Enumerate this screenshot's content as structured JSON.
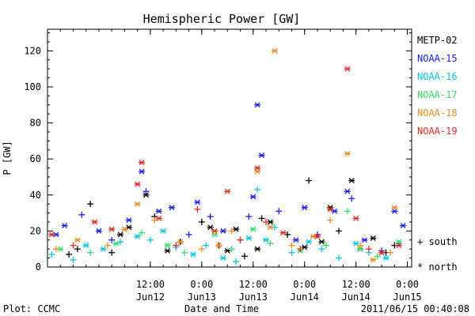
{
  "chart_data": {
    "type": "scatter",
    "title": "Hemispheric Power [GW]",
    "ylabel": "P [GW]",
    "xlabel": "Date and Time",
    "x_range": [
      "2011-06-11T12:00",
      "2011-06-15T01:00"
    ],
    "ylim": [
      0,
      132
    ],
    "y_ticks": [
      0,
      20,
      40,
      60,
      80,
      100,
      120
    ],
    "x_ticks": [
      {
        "x": "2011-06-12T12:00",
        "time": "12:00",
        "date": "Jun12"
      },
      {
        "x": "2011-06-13T00:00",
        "time": "0:00",
        "date": "Jun13"
      },
      {
        "x": "2011-06-13T12:00",
        "time": "12:00",
        "date": "Jun13"
      },
      {
        "x": "2011-06-14T00:00",
        "time": "0:00",
        "date": "Jun14"
      },
      {
        "x": "2011-06-14T12:00",
        "time": "12:00",
        "date": "Jun14"
      },
      {
        "x": "2011-06-15T00:00",
        "time": "0:00",
        "date": "Jun15"
      }
    ],
    "grid": false,
    "legend_position": "right",
    "marker_legend": {
      "south": "+ south",
      "north": "* north"
    },
    "series": [
      {
        "name": "METP-02",
        "color": "#000000",
        "points": [
          [
            "2011-06-11T17:00",
            7,
            "south"
          ],
          [
            "2011-06-11T19:00",
            10,
            "south"
          ],
          [
            "2011-06-11T22:00",
            35,
            "south"
          ],
          [
            "2011-06-12T03:00",
            8,
            "south"
          ],
          [
            "2011-06-12T05:00",
            18,
            "north"
          ],
          [
            "2011-06-12T07:00",
            22,
            "north"
          ],
          [
            "2011-06-12T11:00",
            40,
            "north"
          ],
          [
            "2011-06-12T13:00",
            28,
            "south"
          ],
          [
            "2011-06-12T16:00",
            9,
            "north"
          ],
          [
            "2011-06-12T19:00",
            14,
            "south"
          ],
          [
            "2011-06-13T00:00",
            25,
            "south"
          ],
          [
            "2011-06-13T02:00",
            22,
            "north"
          ],
          [
            "2011-06-13T04:00",
            12,
            "south"
          ],
          [
            "2011-06-13T06:00",
            9,
            "north"
          ],
          [
            "2011-06-13T08:00",
            21,
            "north"
          ],
          [
            "2011-06-13T10:00",
            6,
            "south"
          ],
          [
            "2011-06-13T13:00",
            10,
            "north"
          ],
          [
            "2011-06-13T14:00",
            27,
            "south"
          ],
          [
            "2011-06-13T16:00",
            25,
            "north"
          ],
          [
            "2011-06-13T20:00",
            18,
            "south"
          ],
          [
            "2011-06-14T00:00",
            11,
            "north"
          ],
          [
            "2011-06-14T01:00",
            48,
            "south"
          ],
          [
            "2011-06-14T04:00",
            14,
            "north"
          ],
          [
            "2011-06-14T06:00",
            33,
            "north"
          ],
          [
            "2011-06-14T08:00",
            20,
            "south"
          ],
          [
            "2011-06-14T11:00",
            48,
            "north"
          ],
          [
            "2011-06-14T13:00",
            10,
            "north"
          ],
          [
            "2011-06-14T16:00",
            16,
            "north"
          ],
          [
            "2011-06-14T19:00",
            8,
            "south"
          ],
          [
            "2011-06-14T21:00",
            12,
            "south"
          ]
        ]
      },
      {
        "name": "NOAA-15",
        "color": "#1a1aff",
        "points": [
          [
            "2011-06-11T14:00",
            18,
            "north"
          ],
          [
            "2011-06-11T16:00",
            23,
            "north"
          ],
          [
            "2011-06-11T20:00",
            29,
            "south"
          ],
          [
            "2011-06-12T00:00",
            20,
            "north"
          ],
          [
            "2011-06-12T03:00",
            15,
            "south"
          ],
          [
            "2011-06-12T07:00",
            26,
            "north"
          ],
          [
            "2011-06-12T10:00",
            53,
            "north"
          ],
          [
            "2011-06-12T11:00",
            42,
            "south"
          ],
          [
            "2011-06-12T14:00",
            31,
            "north"
          ],
          [
            "2011-06-12T17:00",
            33,
            "north"
          ],
          [
            "2011-06-12T21:00",
            18,
            "south"
          ],
          [
            "2011-06-12T23:00",
            36,
            "north"
          ],
          [
            "2011-06-13T02:00",
            28,
            "south"
          ],
          [
            "2011-06-13T05:00",
            20,
            "north"
          ],
          [
            "2011-06-13T09:00",
            15,
            "south"
          ],
          [
            "2011-06-13T11:00",
            28,
            "south"
          ],
          [
            "2011-06-13T12:00",
            39,
            "north"
          ],
          [
            "2011-06-13T13:00",
            90,
            "north"
          ],
          [
            "2011-06-13T14:00",
            62,
            "north"
          ],
          [
            "2011-06-13T18:00",
            31,
            "south"
          ],
          [
            "2011-06-13T22:00",
            15,
            "north"
          ],
          [
            "2011-06-14T00:00",
            33,
            "north"
          ],
          [
            "2011-06-14T03:00",
            18,
            "south"
          ],
          [
            "2011-06-14T07:00",
            31,
            "north"
          ],
          [
            "2011-06-14T10:00",
            42,
            "north"
          ],
          [
            "2011-06-14T11:00",
            38,
            "south"
          ],
          [
            "2011-06-14T14:00",
            15,
            "north"
          ],
          [
            "2011-06-14T18:00",
            9,
            "south"
          ],
          [
            "2011-06-14T21:00",
            31,
            "north"
          ],
          [
            "2011-06-14T23:00",
            23,
            "north"
          ]
        ]
      },
      {
        "name": "NOAA-16",
        "color": "#00c8e6",
        "points": [
          [
            "2011-06-11T13:00",
            7,
            "south"
          ],
          [
            "2011-06-11T18:00",
            4,
            "south"
          ],
          [
            "2011-06-11T21:00",
            12,
            "north"
          ],
          [
            "2011-06-12T01:00",
            10,
            "north"
          ],
          [
            "2011-06-12T05:00",
            14,
            "south"
          ],
          [
            "2011-06-12T09:00",
            17,
            "north"
          ],
          [
            "2011-06-12T12:00",
            15,
            "south"
          ],
          [
            "2011-06-12T15:00",
            20,
            "north"
          ],
          [
            "2011-06-12T18:00",
            11,
            "south"
          ],
          [
            "2011-06-12T22:00",
            7,
            "north"
          ],
          [
            "2011-06-13T01:00",
            12,
            "south"
          ],
          [
            "2011-06-13T05:00",
            5,
            "north"
          ],
          [
            "2011-06-13T08:00",
            3,
            "south"
          ],
          [
            "2011-06-13T11:00",
            16,
            "north"
          ],
          [
            "2011-06-13T13:00",
            43,
            "south"
          ],
          [
            "2011-06-13T15:00",
            15,
            "north"
          ],
          [
            "2011-06-13T17:00",
            22,
            "south"
          ],
          [
            "2011-06-13T21:00",
            8,
            "south"
          ],
          [
            "2011-06-14T01:00",
            14,
            "north"
          ],
          [
            "2011-06-14T04:00",
            10,
            "south"
          ],
          [
            "2011-06-14T08:00",
            5,
            "south"
          ],
          [
            "2011-06-14T12:00",
            13,
            "north"
          ],
          [
            "2011-06-14T15:00",
            8,
            "south"
          ],
          [
            "2011-06-14T19:00",
            5,
            "north"
          ],
          [
            "2011-06-14T22:00",
            13,
            "south"
          ]
        ]
      },
      {
        "name": "NOAA-17",
        "color": "#33dd66",
        "points": [
          [
            "2011-06-11T15:00",
            10,
            "north"
          ],
          [
            "2011-06-11T22:00",
            8,
            "south"
          ],
          [
            "2011-06-12T04:00",
            13,
            "north"
          ],
          [
            "2011-06-12T10:00",
            19,
            "south"
          ],
          [
            "2011-06-12T16:00",
            12,
            "north"
          ],
          [
            "2011-06-12T20:00",
            8,
            "south"
          ],
          [
            "2011-06-13T03:00",
            18,
            "north"
          ],
          [
            "2011-06-13T07:00",
            10,
            "south"
          ],
          [
            "2011-06-13T12:00",
            21,
            "north"
          ],
          [
            "2011-06-13T16:00",
            13,
            "south"
          ],
          [
            "2011-06-13T23:00",
            9,
            "north"
          ],
          [
            "2011-06-14T05:00",
            12,
            "south"
          ],
          [
            "2011-06-14T10:00",
            31,
            "south"
          ],
          [
            "2011-06-14T13:00",
            10,
            "north"
          ],
          [
            "2011-06-14T17:00",
            6,
            "south"
          ],
          [
            "2011-06-14T22:00",
            14,
            "north"
          ]
        ]
      },
      {
        "name": "NOAA-18",
        "color": "#f08c1e",
        "points": [
          [
            "2011-06-11T14:00",
            10,
            "south"
          ],
          [
            "2011-06-11T19:00",
            15,
            "north"
          ],
          [
            "2011-06-12T02:00",
            12,
            "south"
          ],
          [
            "2011-06-12T06:00",
            21,
            "north"
          ],
          [
            "2011-06-12T09:00",
            35,
            "north"
          ],
          [
            "2011-06-12T13:00",
            26,
            "south"
          ],
          [
            "2011-06-12T19:00",
            14,
            "north"
          ],
          [
            "2011-06-13T00:00",
            10,
            "south"
          ],
          [
            "2011-06-13T04:00",
            12,
            "north"
          ],
          [
            "2011-06-13T07:00",
            20,
            "south"
          ],
          [
            "2011-06-13T13:00",
            53,
            "north"
          ],
          [
            "2011-06-13T16:00",
            22,
            "north"
          ],
          [
            "2011-06-13T17:00",
            120,
            "north"
          ],
          [
            "2011-06-13T21:00",
            12,
            "south"
          ],
          [
            "2011-06-14T02:00",
            17,
            "north"
          ],
          [
            "2011-06-14T06:00",
            26,
            "south"
          ],
          [
            "2011-06-14T10:00",
            63,
            "north"
          ],
          [
            "2011-06-14T13:00",
            12,
            "south"
          ],
          [
            "2011-06-14T16:00",
            4,
            "north"
          ],
          [
            "2011-06-14T20:00",
            8,
            "south"
          ],
          [
            "2011-06-14T21:00",
            33,
            "north"
          ]
        ]
      },
      {
        "name": "NOAA-19",
        "color": "#e8281e",
        "points": [
          [
            "2011-06-11T13:00",
            18,
            "north"
          ],
          [
            "2011-06-11T18:00",
            12,
            "south"
          ],
          [
            "2011-06-11T23:00",
            25,
            "north"
          ],
          [
            "2011-06-12T03:00",
            21,
            "north"
          ],
          [
            "2011-06-12T09:00",
            46,
            "north"
          ],
          [
            "2011-06-12T10:00",
            58,
            "north"
          ],
          [
            "2011-06-12T14:00",
            27,
            "north"
          ],
          [
            "2011-06-12T18:00",
            12,
            "south"
          ],
          [
            "2011-06-12T23:00",
            32,
            "south"
          ],
          [
            "2011-06-13T03:00",
            20,
            "north"
          ],
          [
            "2011-06-13T06:00",
            42,
            "north"
          ],
          [
            "2011-06-13T09:00",
            15,
            "south"
          ],
          [
            "2011-06-13T13:00",
            55,
            "north"
          ],
          [
            "2011-06-13T15:00",
            25,
            "south"
          ],
          [
            "2011-06-13T19:00",
            19,
            "north"
          ],
          [
            "2011-06-13T23:00",
            10,
            "south"
          ],
          [
            "2011-06-14T03:00",
            17,
            "north"
          ],
          [
            "2011-06-14T06:00",
            32,
            "north"
          ],
          [
            "2011-06-14T10:00",
            110,
            "north"
          ],
          [
            "2011-06-14T12:00",
            27,
            "north"
          ],
          [
            "2011-06-14T15:00",
            10,
            "south"
          ],
          [
            "2011-06-14T18:00",
            8,
            "north"
          ],
          [
            "2011-06-14T22:00",
            12,
            "north"
          ]
        ]
      }
    ]
  },
  "footer": {
    "left": "Plot: CCMC",
    "right": "2011/06/15 00:40:08"
  }
}
